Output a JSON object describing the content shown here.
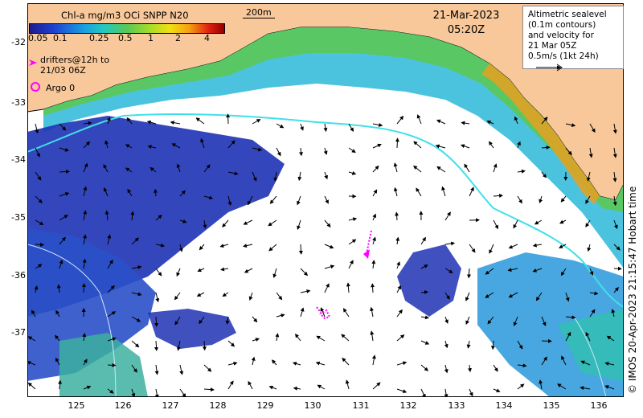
{
  "colorbar": {
    "title": "Chl-a mg/m3 OCi SNPP N20",
    "labels": [
      "0.05",
      "0.1",
      "0.25",
      "0.5",
      "1",
      "2",
      "4"
    ]
  },
  "scale_bar": {
    "label": "200m"
  },
  "date": "21-Mar-2023",
  "time": "05:20Z",
  "altimetry_legend": {
    "lines": [
      "Altimetric sealevel",
      "(0.1m contours)",
      "and velocity for",
      "21 Mar 05Z",
      "0.5m/s (1kt 24h)"
    ]
  },
  "drifter_legend": {
    "line1": "drifters@12h to",
    "line2": "21/03 06Z"
  },
  "argo_legend": {
    "label": "Argo 0"
  },
  "axes": {
    "y_ticks": [
      "-32",
      "-33",
      "-34",
      "-35",
      "-36",
      "-37"
    ],
    "x_ticks": [
      "125",
      "126",
      "127",
      "128",
      "129",
      "130",
      "131",
      "132",
      "133",
      "134",
      "135",
      "136"
    ]
  },
  "credit": "© IMOS 20-Apr-2023 21:15:47 Hobart time",
  "colors": {
    "land": "#f8c89a",
    "contour": "#40e0e8",
    "drifter": "#ff00ff",
    "deep_chl": "#1e32b4",
    "mid_chl": "#28b4dc",
    "shelf_chl": "#40c860"
  }
}
